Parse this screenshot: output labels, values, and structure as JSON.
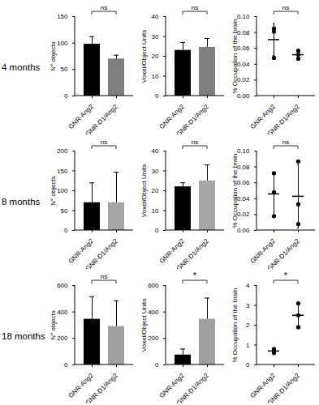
{
  "chart_data": [
    {
      "type": "bar",
      "row_label": "4 months",
      "y_label": "N° objects",
      "categories": [
        "GNR-Ang2",
        "GNR-D1/Ang2"
      ],
      "values": [
        98,
        70
      ],
      "errors": [
        14,
        7
      ],
      "colors": [
        "#000000",
        "#7f7f7f"
      ],
      "ylim": [
        0,
        150
      ],
      "yticks": [
        0,
        50,
        100,
        150
      ],
      "significance": "ns"
    },
    {
      "type": "bar",
      "y_label": "Voxel/Object Units",
      "categories": [
        "GNR-Ang2",
        "GNR-D1/Ang2"
      ],
      "values": [
        23,
        24.5
      ],
      "errors": [
        4,
        4.5
      ],
      "colors": [
        "#000000",
        "#7f7f7f"
      ],
      "ylim": [
        0,
        40
      ],
      "yticks": [
        0,
        10,
        20,
        30,
        40
      ],
      "significance": "ns"
    },
    {
      "type": "scatter",
      "y_label": "% Occupation of the brain",
      "categories": [
        "GNR-Ang2",
        "GNR-D1/Ang2"
      ],
      "points": [
        [
          0.085,
          0.081,
          0.048
        ],
        [
          0.057,
          0.052,
          0.047
        ]
      ],
      "values": [
        0.071,
        0.052
      ],
      "errors": [
        0.02,
        0.005
      ],
      "color": "#000000",
      "ylim": [
        0,
        0.1
      ],
      "yticks": [
        {
          "value": 0,
          "label": "0.00"
        },
        {
          "value": 0.02,
          "label": "0.02"
        },
        {
          "value": 0.04,
          "label": "0.04"
        },
        {
          "value": 0.06,
          "label": "0.06"
        },
        {
          "value": 0.08,
          "label": "0.08"
        },
        {
          "value": 0.1,
          "label": "0.10"
        }
      ],
      "significance": "ns"
    },
    {
      "type": "bar",
      "row_label": "8 months",
      "y_label": "N° objects",
      "categories": [
        "GNR-Ang2",
        "GNR-D1/Ang2"
      ],
      "values": [
        70,
        70
      ],
      "errors": [
        50,
        77
      ],
      "colors": [
        "#000000",
        "#a6a6a6"
      ],
      "ylim": [
        0,
        200
      ],
      "yticks": [
        0,
        50,
        100,
        150,
        200
      ],
      "significance": "ns"
    },
    {
      "type": "bar",
      "y_label": "Voxel/Object Units",
      "categories": [
        "GNR-Ang2",
        "GNR-D1/Ang2"
      ],
      "values": [
        22,
        25
      ],
      "errors": [
        2,
        8
      ],
      "colors": [
        "#000000",
        "#a6a6a6"
      ],
      "ylim": [
        0,
        40
      ],
      "yticks": [
        0,
        10,
        20,
        30,
        40
      ],
      "significance": "ns"
    },
    {
      "type": "scatter",
      "y_label": "% Occupation of the brain",
      "categories": [
        "GNR-Ang2",
        "GNR-D1/Ang2"
      ],
      "points": [
        [
          0.072,
          0.048,
          0.018
        ],
        [
          0.087,
          0.033,
          0.008
        ]
      ],
      "values": [
        0.046,
        0.043
      ],
      "errors": [
        0.027,
        0.04
      ],
      "color": "#000000",
      "ylim": [
        0,
        0.1
      ],
      "yticks": [
        {
          "value": 0,
          "label": "0.00"
        },
        {
          "value": 0.02,
          "label": "0.02"
        },
        {
          "value": 0.04,
          "label": "0.04"
        },
        {
          "value": 0.06,
          "label": "0.06"
        },
        {
          "value": 0.08,
          "label": "0.08"
        },
        {
          "value": 0.1,
          "label": "0.10"
        }
      ],
      "significance": "ns"
    },
    {
      "type": "bar",
      "row_label": "18 months",
      "y_label": "N° objects",
      "categories": [
        "GNR-Ang2",
        "GNR-D1/Ang2"
      ],
      "values": [
        345,
        290
      ],
      "errors": [
        170,
        195
      ],
      "colors": [
        "#000000",
        "#a0a0a0"
      ],
      "ylim": [
        0,
        600
      ],
      "yticks": [
        0,
        200,
        400,
        600
      ],
      "significance": "ns"
    },
    {
      "type": "bar",
      "y_label": "Voxel/Object Units",
      "categories": [
        "GNR-Ang2",
        "GNR-D1/Ang2"
      ],
      "values": [
        75,
        345
      ],
      "errors": [
        45,
        160
      ],
      "colors": [
        "#000000",
        "#a0a0a0"
      ],
      "ylim": [
        0,
        600
      ],
      "yticks": [
        0,
        200,
        400,
        600
      ],
      "significance": "*"
    },
    {
      "type": "scatter",
      "y_label": "% Occupation of the brain",
      "categories": [
        "GNR-Ang2",
        "GNR-D1/Ang2"
      ],
      "points": [
        [
          0.8,
          0.7,
          0.6
        ],
        [
          3.1,
          2.5,
          1.9
        ]
      ],
      "values": [
        0.7,
        2.5
      ],
      "errors": [
        0.15,
        0.6
      ],
      "color": "#000000",
      "ylim": [
        0,
        4
      ],
      "yticks": [
        0,
        1,
        2,
        3,
        4
      ],
      "significance": "*"
    }
  ]
}
